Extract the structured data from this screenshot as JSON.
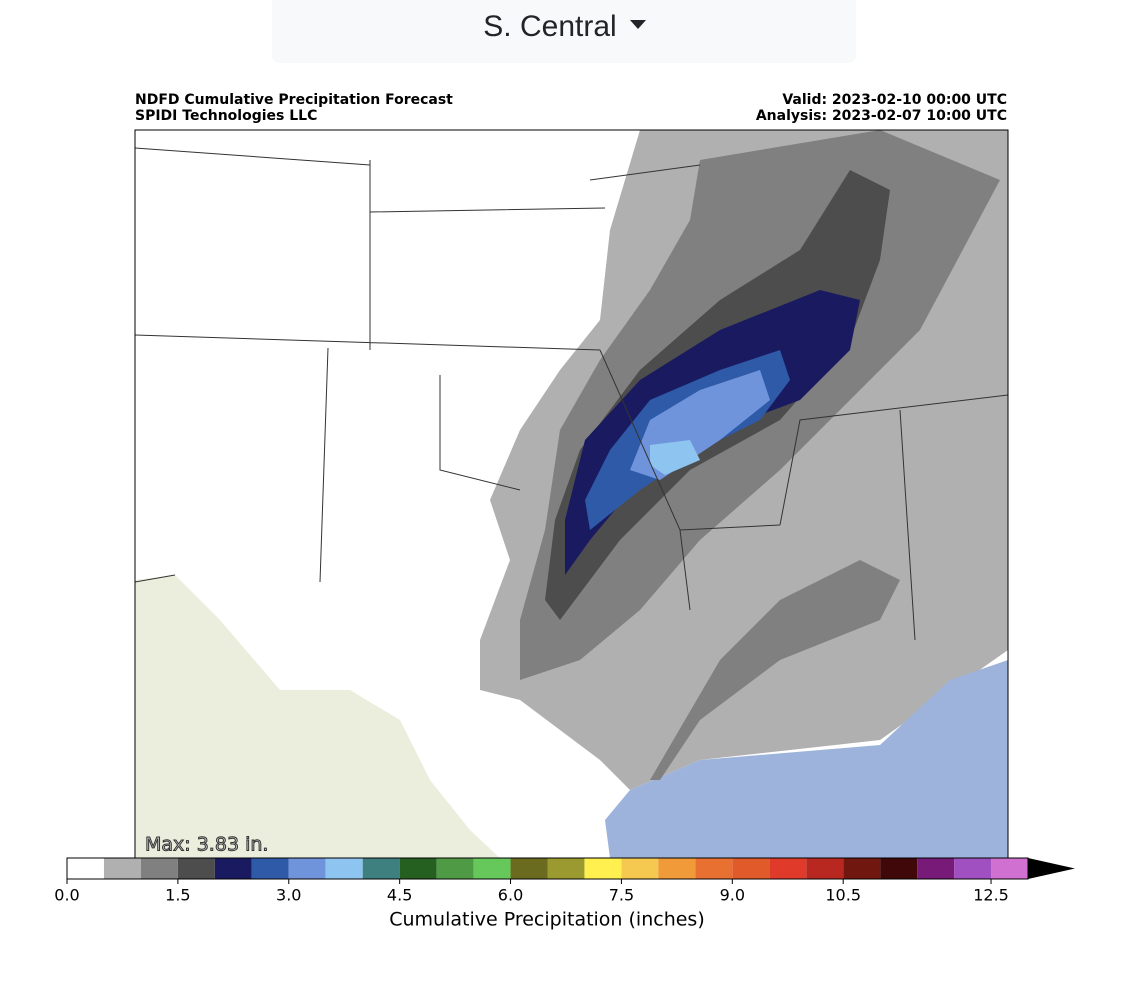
{
  "dropdown": {
    "label": "S. Central"
  },
  "map": {
    "title": "NDFD Cumulative Precipitation Forecast",
    "credit": "SPIDI Technologies LLC",
    "valid": "Valid: 2023-02-10 00:00 UTC",
    "analysis": "Analysis: 2023-02-07 10:00 UTC",
    "max_label": "Max: 3.83 in."
  },
  "colorbar": {
    "label": "Cumulative Precipitation (inches)",
    "extend": "max",
    "levels": [
      0,
      0.5,
      1,
      1.5,
      2,
      2.5,
      3,
      3.5,
      4,
      4.5,
      5,
      5.5,
      6,
      6.5,
      7,
      7.5,
      8,
      8.5,
      9,
      9.5,
      10,
      10.5,
      11,
      11.5,
      12,
      12.5,
      13
    ],
    "colors": [
      "#ffffff",
      "#b0b0b0",
      "#808080",
      "#4d4d4d",
      "#1a1a60",
      "#2e5aa8",
      "#6f94dc",
      "#8ec4f0",
      "#3e7f7f",
      "#256020",
      "#4f9b45",
      "#66c85a",
      "#6b6b20",
      "#9a9a30",
      "#fff050",
      "#f5c850",
      "#f09a3a",
      "#e87030",
      "#e05a2a",
      "#e03a2a",
      "#b82820",
      "#701810",
      "#400808",
      "#781a78",
      "#a050c0",
      "#d070d0"
    ],
    "ticks": [
      {
        "value": 0,
        "label": "0.0"
      },
      {
        "value": 1.5,
        "label": "1.5"
      },
      {
        "value": 3,
        "label": "3.0"
      },
      {
        "value": 4.5,
        "label": "4.5"
      },
      {
        "value": 6,
        "label": "6.0"
      },
      {
        "value": 7.5,
        "label": "7.5"
      },
      {
        "value": 9,
        "label": "9.0"
      },
      {
        "value": 10.5,
        "label": "10.5"
      },
      {
        "value": 12.5,
        "label": "12.5"
      }
    ]
  }
}
